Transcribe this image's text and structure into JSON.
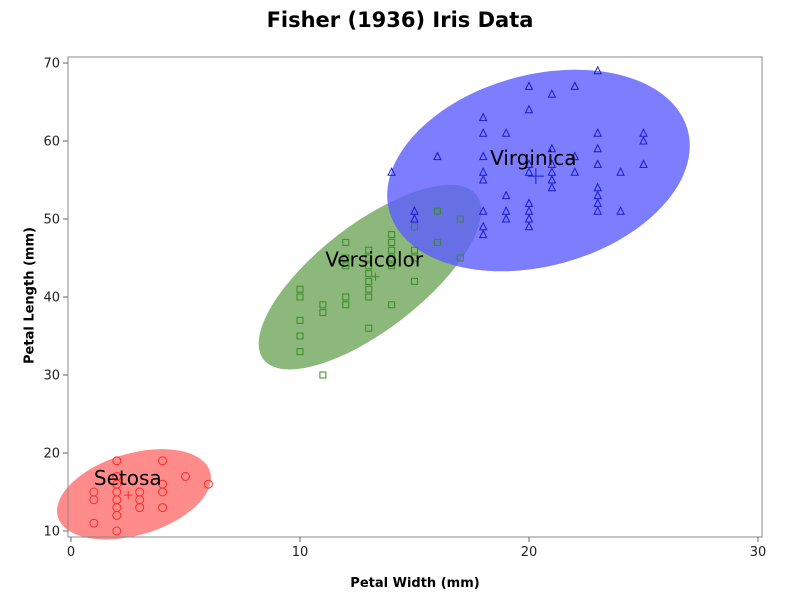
{
  "chart_data": {
    "type": "scatter",
    "title": "Fisher (1936) Iris Data",
    "xlabel": "Petal Width (mm)",
    "ylabel": "Petal Length (mm)",
    "xlim": [
      0,
      30
    ],
    "ylim": [
      10,
      70
    ],
    "xticks": [
      0,
      10,
      20,
      30
    ],
    "yticks": [
      10,
      20,
      30,
      40,
      50,
      60,
      70
    ],
    "grid": false,
    "groups": [
      {
        "label": "Setosa",
        "marker": "circle",
        "color": "#ff2a2a",
        "fill": "#ff6e6e",
        "mean": [
          2.5,
          14.6
        ],
        "ellipse": {
          "cx": 2.5,
          "cy": 14.6,
          "rx_pts": [
            2.5,
            14.6
          ]
        },
        "points": [
          [
            1,
            11
          ],
          [
            1,
            14
          ],
          [
            1,
            15
          ],
          [
            2,
            10
          ],
          [
            2,
            12
          ],
          [
            2,
            13
          ],
          [
            2,
            14
          ],
          [
            2,
            15
          ],
          [
            2,
            16
          ],
          [
            2,
            17
          ],
          [
            2,
            19
          ],
          [
            3,
            13
          ],
          [
            3,
            14
          ],
          [
            3,
            15
          ],
          [
            4,
            13
          ],
          [
            4,
            15
          ],
          [
            4,
            16
          ],
          [
            4,
            19
          ],
          [
            5,
            17
          ],
          [
            6,
            16
          ]
        ]
      },
      {
        "label": "Versicolor",
        "marker": "square",
        "color": "#3a8a2a",
        "fill": "#6fa85a",
        "mean": [
          13.3,
          42.6
        ],
        "points": [
          [
            10,
            33
          ],
          [
            10,
            35
          ],
          [
            10,
            37
          ],
          [
            10,
            40
          ],
          [
            10,
            41
          ],
          [
            11,
            30
          ],
          [
            11,
            38
          ],
          [
            11,
            39
          ],
          [
            12,
            39
          ],
          [
            12,
            40
          ],
          [
            12,
            44
          ],
          [
            12,
            45
          ],
          [
            12,
            47
          ],
          [
            13,
            36
          ],
          [
            13,
            40
          ],
          [
            13,
            41
          ],
          [
            13,
            42
          ],
          [
            13,
            43
          ],
          [
            13,
            44
          ],
          [
            13,
            45
          ],
          [
            13,
            46
          ],
          [
            14,
            39
          ],
          [
            14,
            44
          ],
          [
            14,
            45
          ],
          [
            14,
            46
          ],
          [
            14,
            47
          ],
          [
            14,
            48
          ],
          [
            15,
            42
          ],
          [
            15,
            45
          ],
          [
            15,
            46
          ],
          [
            15,
            49
          ],
          [
            16,
            47
          ],
          [
            16,
            51
          ],
          [
            17,
            45
          ],
          [
            17,
            50
          ]
        ]
      },
      {
        "label": "Virginica",
        "marker": "triangle",
        "color": "#1a1ad0",
        "fill": "#5c5cff",
        "mean": [
          20.3,
          55.5
        ],
        "points": [
          [
            14,
            56
          ],
          [
            15,
            50
          ],
          [
            15,
            51
          ],
          [
            16,
            58
          ],
          [
            18,
            48
          ],
          [
            18,
            49
          ],
          [
            18,
            51
          ],
          [
            18,
            55
          ],
          [
            18,
            56
          ],
          [
            18,
            58
          ],
          [
            18,
            61
          ],
          [
            18,
            63
          ],
          [
            19,
            50
          ],
          [
            19,
            51
          ],
          [
            19,
            53
          ],
          [
            19,
            61
          ],
          [
            20,
            49
          ],
          [
            20,
            50
          ],
          [
            20,
            51
          ],
          [
            20,
            52
          ],
          [
            20,
            56
          ],
          [
            20,
            57
          ],
          [
            20,
            64
          ],
          [
            20,
            67
          ],
          [
            21,
            54
          ],
          [
            21,
            55
          ],
          [
            21,
            56
          ],
          [
            21,
            57
          ],
          [
            21,
            59
          ],
          [
            21,
            66
          ],
          [
            22,
            56
          ],
          [
            22,
            58
          ],
          [
            22,
            67
          ],
          [
            23,
            51
          ],
          [
            23,
            52
          ],
          [
            23,
            53
          ],
          [
            23,
            54
          ],
          [
            23,
            57
          ],
          [
            23,
            59
          ],
          [
            23,
            61
          ],
          [
            23,
            69
          ],
          [
            24,
            51
          ],
          [
            24,
            56
          ],
          [
            25,
            57
          ],
          [
            25,
            60
          ],
          [
            25,
            61
          ]
        ]
      }
    ]
  }
}
